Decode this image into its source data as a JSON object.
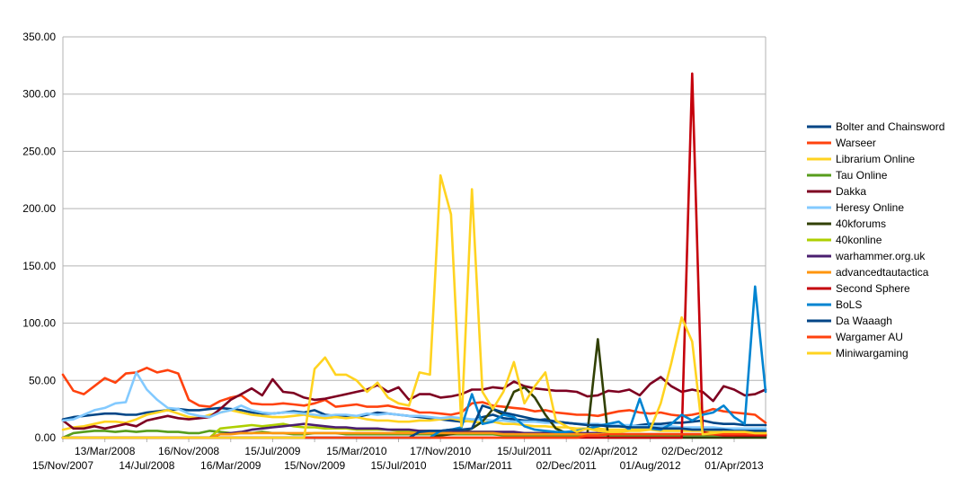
{
  "chart_data": {
    "type": "line",
    "title": "",
    "xlabel": "",
    "ylabel": "",
    "ylim": [
      0,
      350
    ],
    "yticks": [
      0,
      50,
      100,
      150,
      200,
      250,
      300,
      350
    ],
    "ytick_labels": [
      "0.00",
      "50.00",
      "100.00",
      "150.00",
      "200.00",
      "250.00",
      "300.00",
      "350.00"
    ],
    "grid": true,
    "legend_position": "right",
    "x_tick_labels": [
      "15/Nov/2007",
      "13/Mar/2008",
      "14/Jul/2008",
      "16/Nov/2008",
      "16/Mar/2009",
      "15/Jul/2009",
      "15/Nov/2009",
      "15/Mar/2010",
      "15/Jul/2010",
      "17/Nov/2010",
      "15/Mar/2011",
      "15/Jul/2011",
      "02/Dec/2011",
      "02/Apr/2012",
      "01/Aug/2012",
      "02/Dec/2012",
      "01/Apr/2013"
    ],
    "x_tick_index": [
      0,
      4,
      8,
      12,
      16,
      20,
      24,
      28,
      32,
      36,
      40,
      44,
      48,
      52,
      56,
      60,
      64
    ],
    "n_points": 68,
    "series": [
      {
        "name": "Bolter and Chainsword",
        "color": "#004586",
        "values": [
          16,
          18,
          19,
          20,
          21,
          21,
          20,
          20,
          22,
          23,
          24,
          25,
          24,
          24,
          25,
          26,
          25,
          24,
          22,
          21,
          21,
          22,
          23,
          22,
          24,
          20,
          19,
          19,
          18,
          20,
          22,
          21,
          20,
          19,
          18,
          17,
          16,
          15,
          14,
          15,
          18,
          20,
          17,
          16,
          15,
          15,
          16,
          14,
          13,
          12,
          12,
          11,
          10,
          10,
          10,
          11,
          12,
          12,
          13,
          13,
          14,
          15,
          13,
          12,
          12,
          11,
          11,
          11
        ]
      },
      {
        "name": "Warseer",
        "color": "#ff420e",
        "values": [
          55,
          41,
          38,
          45,
          52,
          48,
          56,
          57,
          61,
          57,
          59,
          56,
          33,
          28,
          27,
          32,
          35,
          37,
          30,
          29,
          29,
          30,
          29,
          28,
          30,
          33,
          27,
          28,
          29,
          27,
          27,
          28,
          26,
          25,
          22,
          22,
          21,
          20,
          22,
          30,
          31,
          28,
          27,
          26,
          25,
          23,
          24,
          22,
          21,
          20,
          20,
          19,
          21,
          23,
          24,
          22,
          21,
          22,
          20,
          19,
          20,
          22,
          25,
          23,
          22,
          21,
          20,
          13
        ]
      },
      {
        "name": "Librarium Online",
        "color": "#ffd320",
        "values": [
          7,
          9,
          10,
          12,
          14,
          14,
          13,
          16,
          20,
          22,
          24,
          21,
          18,
          17,
          20,
          22,
          24,
          22,
          20,
          19,
          18,
          18,
          19,
          20,
          18,
          17,
          18,
          17,
          18,
          16,
          15,
          15,
          14,
          14,
          15,
          15,
          16,
          17,
          15,
          14,
          13,
          14,
          12,
          12,
          11,
          10,
          10,
          9,
          9,
          8,
          8,
          8,
          7,
          7,
          7,
          7,
          7,
          6,
          6,
          6,
          6,
          6,
          5,
          5,
          5,
          5,
          5,
          5
        ]
      },
      {
        "name": "Tau Online",
        "color": "#579d1c",
        "values": [
          0,
          4,
          5,
          6,
          6,
          5,
          6,
          5,
          6,
          6,
          5,
          5,
          4,
          4,
          6,
          5,
          4,
          4,
          4,
          5,
          4,
          4,
          3,
          3,
          4,
          4,
          4,
          3,
          3,
          3,
          3,
          3,
          3,
          3,
          3,
          3,
          3,
          3,
          3,
          3,
          3,
          3,
          2,
          2,
          2,
          2,
          2,
          2,
          2,
          2,
          2,
          2,
          2,
          2,
          2,
          2,
          2,
          2,
          2,
          2,
          2,
          2,
          2,
          2,
          2,
          1,
          1,
          1
        ]
      },
      {
        "name": "Dakka",
        "color": "#7e0021",
        "values": [
          15,
          8,
          8,
          10,
          8,
          10,
          12,
          10,
          15,
          17,
          19,
          17,
          16,
          17,
          18,
          25,
          33,
          38,
          43,
          37,
          51,
          40,
          39,
          35,
          33,
          34,
          36,
          38,
          40,
          42,
          46,
          40,
          44,
          33,
          38,
          38,
          35,
          36,
          38,
          42,
          42,
          44,
          43,
          49,
          45,
          43,
          42,
          41,
          41,
          40,
          36,
          37,
          41,
          40,
          42,
          37,
          47,
          53,
          45,
          40,
          42,
          40,
          32,
          45,
          42,
          37,
          38,
          42
        ]
      },
      {
        "name": "Heresy Online",
        "color": "#83caff",
        "values": [
          15,
          16,
          20,
          24,
          26,
          30,
          31,
          57,
          42,
          33,
          26,
          25,
          21,
          19,
          18,
          22,
          24,
          28,
          24,
          22,
          21,
          22,
          22,
          21,
          20,
          19,
          20,
          20,
          19,
          21,
          20,
          21,
          20,
          19,
          19,
          18,
          17,
          18,
          17,
          16,
          16,
          15,
          15,
          14,
          14,
          14,
          13,
          13,
          13,
          12,
          12,
          12,
          11,
          11,
          11,
          10,
          10,
          10,
          10,
          9,
          9,
          9,
          9,
          8,
          8,
          8,
          8,
          8
        ]
      },
      {
        "name": "40kforums",
        "color": "#314004",
        "values": [
          0,
          0,
          0,
          0,
          0,
          0,
          0,
          0,
          0,
          0,
          0,
          0,
          0,
          0,
          0,
          0,
          0,
          0,
          0,
          0,
          0,
          0,
          0,
          0,
          0,
          0,
          0,
          0,
          0,
          0,
          0,
          0,
          0,
          0,
          0,
          0,
          2,
          3,
          5,
          8,
          14,
          25,
          20,
          40,
          44,
          35,
          20,
          8,
          4,
          3,
          3,
          86,
          0,
          0,
          0,
          0,
          0,
          0,
          0,
          0,
          0,
          0,
          0,
          0,
          0,
          0,
          0,
          0
        ]
      },
      {
        "name": "40konline",
        "color": "#aecf00",
        "values": [
          0,
          0,
          0,
          0,
          0,
          0,
          0,
          0,
          0,
          0,
          0,
          0,
          0,
          0,
          0,
          8,
          9,
          10,
          11,
          10,
          11,
          12,
          10,
          9,
          9,
          8,
          8,
          8,
          7,
          7,
          7,
          7,
          6,
          6,
          6,
          6,
          5,
          5,
          5,
          5,
          5,
          5,
          4,
          4,
          4,
          4,
          4,
          4,
          4,
          4,
          3,
          3,
          3,
          3,
          3,
          3,
          3,
          3,
          3,
          3,
          3,
          3,
          3,
          3,
          3,
          3,
          3,
          3
        ]
      },
      {
        "name": "warhammer.org.uk",
        "color": "#4b1f6f",
        "values": [
          0,
          0,
          0,
          0,
          0,
          0,
          0,
          0,
          0,
          0,
          0,
          0,
          0,
          0,
          0,
          3,
          4,
          5,
          7,
          8,
          9,
          10,
          11,
          12,
          11,
          10,
          9,
          9,
          8,
          8,
          8,
          7,
          7,
          7,
          6,
          6,
          6,
          6,
          5,
          5,
          5,
          5,
          5,
          5,
          4,
          4,
          4,
          4,
          4,
          4,
          4,
          4,
          3,
          3,
          3,
          3,
          3,
          3,
          3,
          3,
          3,
          3,
          3,
          3,
          3,
          2,
          2,
          2
        ]
      },
      {
        "name": "advancedtautactica",
        "color": "#ff950e",
        "values": [
          0,
          0,
          0,
          0,
          0,
          0,
          0,
          0,
          0,
          0,
          0,
          0,
          0,
          0,
          0,
          3,
          3,
          4,
          4,
          4,
          4,
          4,
          4,
          4,
          4,
          4,
          4,
          4,
          4,
          4,
          4,
          4,
          4,
          4,
          4,
          4,
          4,
          4,
          4,
          4,
          4,
          4,
          3,
          3,
          3,
          3,
          3,
          3,
          3,
          3,
          3,
          3,
          3,
          3,
          3,
          3,
          3,
          3,
          3,
          3,
          3,
          3,
          3,
          3,
          3,
          3,
          3,
          3
        ]
      },
      {
        "name": "Second Sphere",
        "color": "#c5000b",
        "values": [
          0,
          0,
          0,
          0,
          0,
          0,
          0,
          0,
          0,
          0,
          0,
          0,
          0,
          0,
          0,
          0,
          0,
          0,
          0,
          0,
          0,
          0,
          0,
          0,
          0,
          0,
          0,
          0,
          0,
          0,
          0,
          0,
          0,
          0,
          0,
          0,
          0,
          0,
          0,
          0,
          0,
          0,
          0,
          0,
          0,
          0,
          0,
          0,
          0,
          0,
          0,
          0,
          0,
          0,
          0,
          0,
          0,
          0,
          0,
          0,
          318,
          5,
          3,
          2,
          2,
          2,
          2,
          2
        ]
      },
      {
        "name": "BoLS",
        "color": "#0084d1",
        "values": [
          0,
          0,
          0,
          0,
          0,
          0,
          0,
          0,
          0,
          0,
          0,
          0,
          0,
          0,
          0,
          0,
          0,
          0,
          0,
          0,
          0,
          0,
          0,
          0,
          0,
          0,
          0,
          0,
          0,
          0,
          0,
          0,
          0,
          0,
          0,
          0,
          6,
          7,
          9,
          38,
          12,
          14,
          20,
          18,
          10,
          7,
          6,
          5,
          5,
          6,
          8,
          10,
          12,
          14,
          7,
          34,
          8,
          7,
          12,
          20,
          15,
          20,
          22,
          28,
          18,
          12,
          132,
          40
        ]
      },
      {
        "name": "Da Waaagh",
        "color": "#004586",
        "values": [
          0,
          0,
          0,
          0,
          0,
          0,
          0,
          0,
          0,
          0,
          0,
          0,
          0,
          0,
          0,
          0,
          0,
          0,
          0,
          0,
          0,
          0,
          0,
          0,
          0,
          0,
          0,
          0,
          0,
          0,
          0,
          0,
          0,
          0,
          5,
          6,
          6,
          7,
          7,
          8,
          28,
          25,
          22,
          20,
          18,
          16,
          15,
          14,
          13,
          12,
          11,
          11,
          10,
          10,
          9,
          9,
          9,
          8,
          8,
          8,
          7,
          7,
          7,
          7,
          6,
          6,
          6,
          6
        ]
      },
      {
        "name": "Wargamer AU",
        "color": "#ff420e",
        "values": [
          0,
          0,
          0,
          0,
          0,
          0,
          0,
          0,
          0,
          0,
          0,
          0,
          0,
          0,
          0,
          0,
          0,
          0,
          0,
          0,
          0,
          0,
          0,
          0,
          0,
          0,
          0,
          0,
          0,
          0,
          0,
          0,
          0,
          0,
          0,
          0,
          0,
          0,
          0,
          0,
          0,
          0,
          0,
          0,
          0,
          0,
          0,
          0,
          0,
          0,
          2,
          2,
          3,
          3,
          3,
          3,
          3,
          3,
          3,
          3,
          3,
          3,
          3,
          3,
          3,
          3,
          3,
          3
        ]
      },
      {
        "name": "Miniwargaming",
        "color": "#ffd320",
        "values": [
          0,
          0,
          0,
          0,
          0,
          0,
          0,
          0,
          0,
          0,
          0,
          0,
          0,
          0,
          0,
          0,
          0,
          0,
          0,
          0,
          0,
          0,
          0,
          0,
          60,
          70,
          55,
          55,
          50,
          40,
          48,
          35,
          30,
          28,
          57,
          55,
          229,
          195,
          10,
          217,
          40,
          25,
          40,
          66,
          30,
          45,
          57,
          15,
          10,
          5,
          8,
          6,
          5,
          5,
          6,
          6,
          7,
          30,
          65,
          105,
          84,
          3,
          4,
          5,
          5,
          5,
          4,
          4
        ]
      }
    ]
  }
}
